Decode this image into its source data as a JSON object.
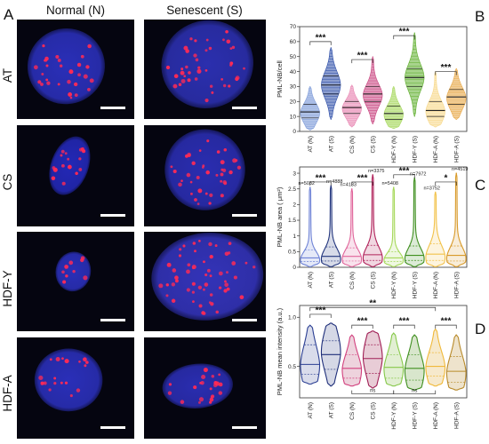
{
  "panel_a": {
    "letter": "A",
    "col_headers": [
      "Normal (N)",
      "Senescent (S)"
    ],
    "rows": [
      {
        "label": "AT",
        "normal": {
          "nucleus_color": "#2a2fb8",
          "foci": 30
        },
        "senescent": {
          "nucleus_color": "#2b2fae",
          "foci": 40
        }
      },
      {
        "label": "CS",
        "normal": {
          "nucleus_color": "#2328b6",
          "foci": 16
        },
        "senescent": {
          "nucleus_color": "#2a2db0",
          "foci": 38
        }
      },
      {
        "label": "HDF-Y",
        "normal": {
          "nucleus_color": "#2a2fb8",
          "foci": 9
        },
        "senescent": {
          "nucleus_color": "#3333b8",
          "foci": 55
        }
      },
      {
        "label": "HDF-A",
        "normal": {
          "nucleus_color": "#2a2fb8",
          "foci": 18
        },
        "senescent": {
          "nucleus_color": "#2a2db0",
          "foci": 22
        }
      }
    ],
    "background": "#050510",
    "foci_color": "#ff2a55",
    "scalebar_color": "#ffffff"
  },
  "chart_data": [
    {
      "panel": "B",
      "type": "violin",
      "ylabel": "PML-NB/cell",
      "ylim": [
        0,
        70
      ],
      "yticks": [
        0,
        10,
        20,
        30,
        40,
        50,
        60,
        70
      ],
      "categories": [
        "AT (N)",
        "AT (S)",
        "CS (N)",
        "CS (S)",
        "HDF-Y (N)",
        "HDF-Y (S)",
        "HDF-A (N)",
        "HDF-A (S)"
      ],
      "colors": [
        "#7f9cd9",
        "#2e4ea8",
        "#e98ab5",
        "#c9447f",
        "#a8d860",
        "#5fae2d",
        "#f7d88a",
        "#e8a94a"
      ],
      "distributions": [
        {
          "min": 1,
          "q1": 9,
          "median": 13,
          "q3": 18,
          "max": 30,
          "mode": 12
        },
        {
          "min": 8,
          "q1": 25,
          "median": 31,
          "q3": 37,
          "max": 56,
          "mode": 31
        },
        {
          "min": 3,
          "q1": 12,
          "median": 16,
          "q3": 20,
          "max": 31,
          "mode": 15
        },
        {
          "min": 5,
          "q1": 20,
          "median": 25,
          "q3": 30,
          "max": 50,
          "mode": 24
        },
        {
          "min": 2,
          "q1": 8,
          "median": 12,
          "q3": 17,
          "max": 30,
          "mode": 11
        },
        {
          "min": 10,
          "q1": 30,
          "median": 36,
          "q3": 42,
          "max": 66,
          "mode": 36
        },
        {
          "min": 3,
          "q1": 10,
          "median": 14,
          "q3": 20,
          "max": 40,
          "mode": 13
        },
        {
          "min": 8,
          "q1": 18,
          "median": 23,
          "q3": 28,
          "max": 42,
          "mode": 22
        }
      ],
      "significance": [
        {
          "pair": [
            0,
            1
          ],
          "label": "***",
          "y": 60
        },
        {
          "pair": [
            2,
            3
          ],
          "label": "***",
          "y": 48
        },
        {
          "pair": [
            4,
            5
          ],
          "label": "***",
          "y": 64
        },
        {
          "pair": [
            6,
            7
          ],
          "label": "***",
          "y": 40
        }
      ]
    },
    {
      "panel": "C",
      "type": "violin",
      "ylabel": "PML-NB area ( μm²)",
      "ylim": [
        0,
        3.2
      ],
      "yticks": [
        0,
        0.5,
        1,
        1.5,
        2,
        2.5,
        3
      ],
      "ytick_labels": [
        "0",
        "0.5",
        "1",
        "1.5",
        "2",
        "2.5",
        "3"
      ],
      "categories": [
        "AT (N)",
        "AT (S)",
        "CS (N)",
        "CS (S)",
        "HDF-Y (N)",
        "HDF-Y (S)",
        "HDF-A (N)",
        "HDF-A (S)"
      ],
      "colors": [
        "#6f83d6",
        "#22357d",
        "#e0649a",
        "#b0225a",
        "#a6d85a",
        "#3f8f1f",
        "#f2c24a",
        "#d89a2a"
      ],
      "n_labels": [
        "n=5032",
        "n=4888",
        "n=4133",
        "n=3375",
        "n=5408",
        "n=7972",
        "n=3752",
        "n=4519"
      ],
      "distributions": [
        {
          "min": 0.02,
          "q1": 0.18,
          "median": 0.3,
          "q3": 0.55,
          "max": 2.55,
          "mode": 0.22
        },
        {
          "min": 0.02,
          "q1": 0.2,
          "median": 0.35,
          "q3": 0.65,
          "max": 2.6,
          "mode": 0.25
        },
        {
          "min": 0.02,
          "q1": 0.2,
          "median": 0.35,
          "q3": 0.62,
          "max": 2.5,
          "mode": 0.25
        },
        {
          "min": 0.02,
          "q1": 0.22,
          "median": 0.4,
          "q3": 0.7,
          "max": 2.95,
          "mode": 0.28
        },
        {
          "min": 0.02,
          "q1": 0.18,
          "median": 0.3,
          "q3": 0.5,
          "max": 2.55,
          "mode": 0.22
        },
        {
          "min": 0.02,
          "q1": 0.22,
          "median": 0.38,
          "q3": 0.68,
          "max": 2.85,
          "mode": 0.26
        },
        {
          "min": 0.02,
          "q1": 0.22,
          "median": 0.42,
          "q3": 0.75,
          "max": 2.4,
          "mode": 0.3
        },
        {
          "min": 0.02,
          "q1": 0.2,
          "median": 0.38,
          "q3": 0.68,
          "max": 3.0,
          "mode": 0.27
        }
      ],
      "significance": [
        {
          "pair": [
            0,
            1
          ],
          "label": "***",
          "y": 2.72
        },
        {
          "pair": [
            2,
            3
          ],
          "label": "***",
          "y": 2.72
        },
        {
          "pair": [
            4,
            5
          ],
          "label": "***",
          "y": 2.95
        },
        {
          "pair": [
            6,
            7
          ],
          "label": "*",
          "y": 2.72
        }
      ]
    },
    {
      "panel": "D",
      "type": "violin",
      "ylabel": "PML-NB mean intensity (a.u.)",
      "ylim": [
        0.18,
        1.12
      ],
      "yticks": [
        0.5,
        1.0
      ],
      "ytick_labels": [
        "0.5",
        "1.0"
      ],
      "categories": [
        "AT (N)",
        "AT (S)",
        "CS (N)",
        "CS (S)",
        "HDF-Y (N)",
        "HDF-Y (S)",
        "HDF-A (N)",
        "HDF-A (S)"
      ],
      "colors": [
        "#2b3f93",
        "#1f2f7a",
        "#d2417e",
        "#a01f55",
        "#86c84a",
        "#3f8f1f",
        "#f0b93a",
        "#b88a2a"
      ],
      "fills": [
        "#d9dceb",
        "#d5d8e6",
        "#eed3dd",
        "#e8ccd6",
        "#e2efd3",
        "#d8e6cc",
        "#f6e9cc",
        "#eee3cc"
      ],
      "distributions": [
        {
          "min": 0.32,
          "q1": 0.42,
          "median": 0.52,
          "q3": 0.72,
          "max": 0.92,
          "mode": 0.5
        },
        {
          "min": 0.3,
          "q1": 0.47,
          "median": 0.62,
          "q3": 0.76,
          "max": 0.94,
          "mode": 0.66
        },
        {
          "min": 0.3,
          "q1": 0.38,
          "median": 0.48,
          "q3": 0.62,
          "max": 0.82,
          "mode": 0.45
        },
        {
          "min": 0.28,
          "q1": 0.43,
          "median": 0.58,
          "q3": 0.72,
          "max": 0.86,
          "mode": 0.6
        },
        {
          "min": 0.3,
          "q1": 0.38,
          "median": 0.49,
          "q3": 0.62,
          "max": 0.84,
          "mode": 0.46
        },
        {
          "min": 0.26,
          "q1": 0.36,
          "median": 0.48,
          "q3": 0.62,
          "max": 0.82,
          "mode": 0.44
        },
        {
          "min": 0.3,
          "q1": 0.4,
          "median": 0.5,
          "q3": 0.64,
          "max": 0.88,
          "mode": 0.48
        },
        {
          "min": 0.26,
          "q1": 0.34,
          "median": 0.45,
          "q3": 0.6,
          "max": 0.82,
          "mode": 0.42
        }
      ],
      "significance": [
        {
          "pair": [
            0,
            1
          ],
          "label": "***",
          "y": 1.03,
          "pos": "top"
        },
        {
          "pair": [
            2,
            3
          ],
          "label": "***",
          "y": 0.92,
          "pos": "top"
        },
        {
          "pair": [
            0,
            6
          ],
          "label": "**",
          "y": 1.1,
          "pos": "top"
        },
        {
          "pair": [
            4,
            5
          ],
          "label": "***",
          "y": 0.92,
          "pos": "top"
        },
        {
          "pair": [
            6,
            7
          ],
          "label": "***",
          "y": 0.92,
          "pos": "top"
        },
        {
          "pair": [
            2,
            4
          ],
          "label": "ns",
          "y": 0.22,
          "pos": "bottom"
        },
        {
          "pair": [
            4,
            6
          ],
          "label": "ns",
          "y": 0.22,
          "pos": "bottom"
        }
      ]
    }
  ]
}
